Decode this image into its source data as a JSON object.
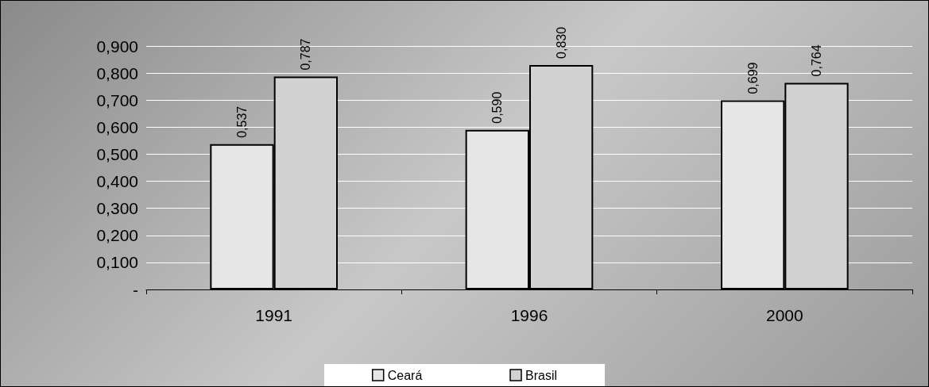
{
  "chart_data": {
    "type": "bar",
    "categories": [
      "1991",
      "1996",
      "2000"
    ],
    "series": [
      {
        "name": "Ceará",
        "color": "#e6e6e6",
        "values": [
          0.537,
          0.59,
          0.699
        ],
        "value_labels": [
          "0,537",
          "0,590",
          "0,699"
        ]
      },
      {
        "name": "Brasil",
        "color": "#d2d2d2",
        "values": [
          0.787,
          0.83,
          0.764
        ],
        "value_labels": [
          "0,787",
          "0,830",
          "0,764"
        ]
      }
    ],
    "ylim": [
      0,
      0.9
    ],
    "yticks": [
      {
        "value": 0,
        "label": "-"
      },
      {
        "value": 0.1,
        "label": "0,100"
      },
      {
        "value": 0.2,
        "label": "0,200"
      },
      {
        "value": 0.3,
        "label": "0,300"
      },
      {
        "value": 0.4,
        "label": "0,400"
      },
      {
        "value": 0.5,
        "label": "0,500"
      },
      {
        "value": 0.6,
        "label": "0,600"
      },
      {
        "value": 0.7,
        "label": "0,700"
      },
      {
        "value": 0.8,
        "label": "0,800"
      },
      {
        "value": 0.9,
        "label": "0,900"
      }
    ],
    "grid": "y",
    "legend": "bottom"
  }
}
